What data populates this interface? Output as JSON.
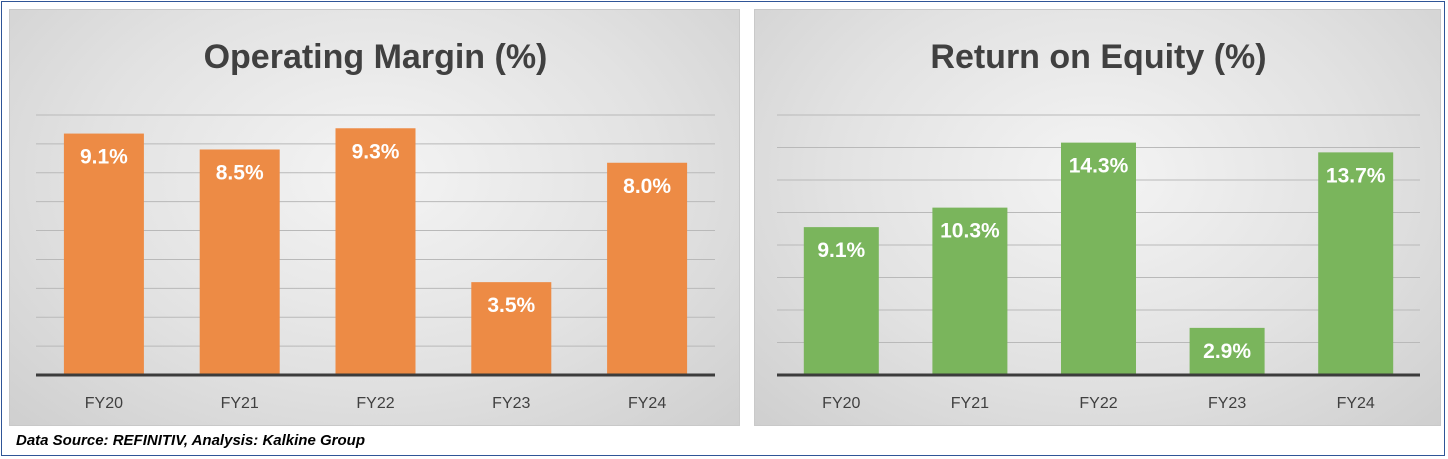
{
  "footer": {
    "text": "Data Source: REFINITIV, Analysis: Kalkine Group"
  },
  "chart_data": [
    {
      "type": "bar",
      "title": "Operating Margin (%)",
      "categories": [
        "FY20",
        "FY21",
        "FY22",
        "FY23",
        "FY24"
      ],
      "values": [
        9.1,
        8.5,
        9.3,
        3.5,
        8.0
      ],
      "data_labels": [
        "9.1%",
        "8.5%",
        "9.3%",
        "3.5%",
        "8.0%"
      ],
      "ylim": [
        0,
        9.8
      ],
      "gridlines": 9,
      "grid": true,
      "color": "#ED8B45",
      "axis_color": "#3c3c3c"
    },
    {
      "type": "bar",
      "title": "Return on Equity (%)",
      "categories": [
        "FY20",
        "FY21",
        "FY22",
        "FY23",
        "FY24"
      ],
      "values": [
        9.1,
        10.3,
        14.3,
        2.9,
        13.7
      ],
      "data_labels": [
        "9.1%",
        "10.3%",
        "14.3%",
        "2.9%",
        "13.7%"
      ],
      "ylim": [
        0,
        16
      ],
      "gridlines": 8,
      "grid": true,
      "color": "#7AB55C",
      "axis_color": "#3c3c3c"
    }
  ]
}
